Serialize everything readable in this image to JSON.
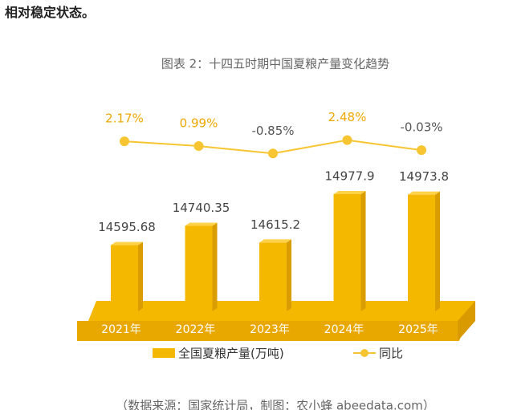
{
  "lead_text": "相对稳定状态。",
  "source": "（数据来源：国家统计局，制图：农小蜂 abeedata.com）",
  "chart_data": {
    "type": "bar",
    "title": "图表 2：十四五时期中国夏粮产量变化趋势",
    "categories": [
      "2021年",
      "2022年",
      "2023年",
      "2024年",
      "2025年"
    ],
    "series": [
      {
        "name": "全国夏粮产量(万吨)",
        "type": "bar",
        "color": "#f5b800",
        "values": [
          14595.68,
          14740.35,
          14615.2,
          14977.9,
          14973.8
        ]
      },
      {
        "name": "同比",
        "type": "line",
        "axis": "y2",
        "color": "#f7c531",
        "values": [
          2.17,
          0.99,
          -0.85,
          2.48,
          -0.03
        ],
        "value_labels": [
          "2.17%",
          "0.99%",
          "-0.85%",
          "2.48%",
          "-0.03%"
        ]
      }
    ],
    "ylim": [
      14100,
      15000
    ],
    "y2lim": [
      -20,
      20
    ]
  }
}
